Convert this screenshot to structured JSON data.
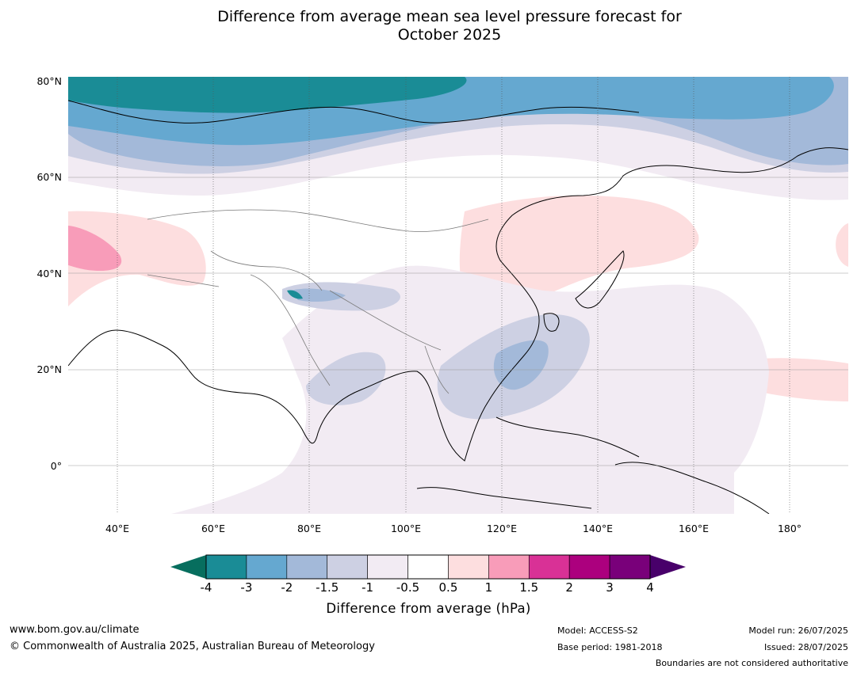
{
  "title_line1": "Difference from average mean sea level pressure forecast for",
  "title_line2": "October 2025",
  "map": {
    "lat_labels": [
      "80°N",
      "60°N",
      "40°N",
      "20°N",
      "0°"
    ],
    "lon_labels": [
      "40°E",
      "60°E",
      "80°E",
      "100°E",
      "120°E",
      "140°E",
      "160°E",
      "180°"
    ],
    "region": "Asia"
  },
  "colorbar": {
    "label": "Difference from average (hPa)",
    "ticks": [
      "-4",
      "-3",
      "-2",
      "-1.5",
      "-1",
      "-0.5",
      "0.5",
      "1",
      "1.5",
      "2",
      "3",
      "4"
    ],
    "colors": [
      "#1a8c96",
      "#65a8d0",
      "#a3b9d9",
      "#cdd0e3",
      "#f2ebf3",
      "#ffffff",
      "#fddedf",
      "#f89cb9",
      "#d93196",
      "#ac007e",
      "#79007a"
    ],
    "under_color": "#076e5e",
    "over_color": "#48006a"
  },
  "footer": {
    "url": "www.bom.gov.au/climate",
    "copyright": "© Commonwealth of Australia 2025, Australian Bureau of Meteorology",
    "model": "Model: ACCESS-S2",
    "base_period": "Base period: 1981-2018",
    "model_run": "Model run: 26/07/2025",
    "issued": "Issued: 28/07/2025",
    "disclaimer": "Boundaries are not considered authoritative"
  }
}
